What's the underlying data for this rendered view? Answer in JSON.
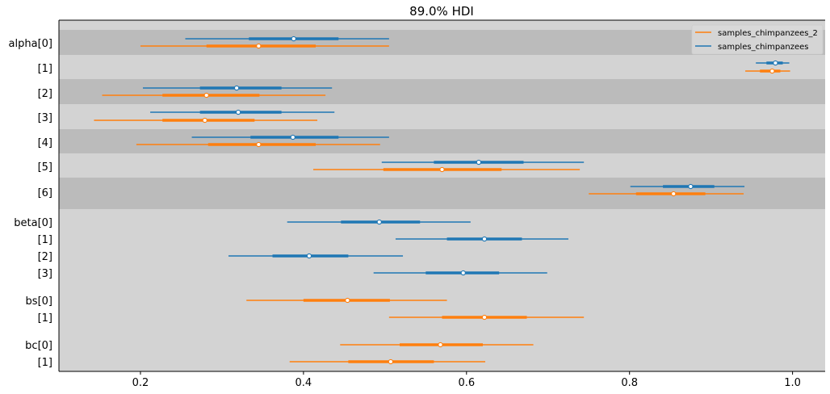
{
  "chart_data": {
    "type": "forest",
    "title": "89.0% HDI",
    "xlim": [
      0.1,
      1.04
    ],
    "xticks": [
      0.2,
      0.4,
      0.6,
      0.8,
      1.0
    ],
    "xtick_labels": [
      "0.2",
      "0.4",
      "0.6",
      "0.8",
      "1.0"
    ],
    "legend": {
      "placement": "top-right",
      "entries": [
        {
          "name": "samples_chimpanzees_2",
          "color": "#ff7f0e"
        },
        {
          "name": "samples_chimpanzees",
          "color": "#1f77b4"
        }
      ]
    },
    "colors": {
      "band_dark": "#bbbbbb",
      "band_light": "#d3d3d3",
      "series_blue": "#1f77b4",
      "series_orange": "#ff7f0e"
    },
    "rows": [
      {
        "label": "alpha[0]",
        "band": "dark",
        "blue": {
          "lo": 0.255,
          "q1": 0.333,
          "mid": 0.388,
          "q3": 0.443,
          "hi": 0.505
        },
        "orange": {
          "lo": 0.2,
          "q1": 0.281,
          "mid": 0.345,
          "q3": 0.415,
          "hi": 0.505
        }
      },
      {
        "label": "[1]",
        "band": "light",
        "blue": {
          "lo": 0.955,
          "q1": 0.968,
          "mid": 0.979,
          "q3": 0.988,
          "hi": 0.996
        },
        "orange": {
          "lo": 0.942,
          "q1": 0.96,
          "mid": 0.975,
          "q3": 0.985,
          "hi": 0.997
        }
      },
      {
        "label": "[2]",
        "band": "dark",
        "blue": {
          "lo": 0.203,
          "q1": 0.273,
          "mid": 0.318,
          "q3": 0.373,
          "hi": 0.435
        },
        "orange": {
          "lo": 0.153,
          "q1": 0.227,
          "mid": 0.281,
          "q3": 0.346,
          "hi": 0.427
        }
      },
      {
        "label": "[3]",
        "band": "light",
        "blue": {
          "lo": 0.212,
          "q1": 0.273,
          "mid": 0.32,
          "q3": 0.373,
          "hi": 0.438
        },
        "orange": {
          "lo": 0.143,
          "q1": 0.227,
          "mid": 0.279,
          "q3": 0.34,
          "hi": 0.417
        }
      },
      {
        "label": "[4]",
        "band": "dark",
        "blue": {
          "lo": 0.263,
          "q1": 0.335,
          "mid": 0.387,
          "q3": 0.443,
          "hi": 0.505
        },
        "orange": {
          "lo": 0.195,
          "q1": 0.283,
          "mid": 0.345,
          "q3": 0.415,
          "hi": 0.494
        }
      },
      {
        "label": "[5]",
        "band": "light",
        "blue": {
          "lo": 0.496,
          "q1": 0.56,
          "mid": 0.615,
          "q3": 0.67,
          "hi": 0.744
        },
        "orange": {
          "lo": 0.412,
          "q1": 0.498,
          "mid": 0.57,
          "q3": 0.643,
          "hi": 0.739
        }
      },
      {
        "label": "[6]",
        "band": "dark",
        "blue": {
          "lo": 0.801,
          "q1": 0.841,
          "mid": 0.875,
          "q3": 0.904,
          "hi": 0.941
        },
        "orange": {
          "lo": 0.75,
          "q1": 0.808,
          "mid": 0.854,
          "q3": 0.893,
          "hi": 0.94
        }
      },
      {
        "label": "beta[0]",
        "band": "light",
        "blue": {
          "lo": 0.38,
          "q1": 0.446,
          "mid": 0.493,
          "q3": 0.543,
          "hi": 0.605
        }
      },
      {
        "label": "[1]",
        "band": "light",
        "blue": {
          "lo": 0.513,
          "q1": 0.576,
          "mid": 0.622,
          "q3": 0.668,
          "hi": 0.725
        }
      },
      {
        "label": "[2]",
        "band": "light",
        "blue": {
          "lo": 0.308,
          "q1": 0.362,
          "mid": 0.407,
          "q3": 0.455,
          "hi": 0.522
        }
      },
      {
        "label": "[3]",
        "band": "light",
        "blue": {
          "lo": 0.486,
          "q1": 0.55,
          "mid": 0.596,
          "q3": 0.64,
          "hi": 0.699
        }
      },
      {
        "label": "bs[0]",
        "band": "light",
        "orange": {
          "lo": 0.33,
          "q1": 0.4,
          "mid": 0.454,
          "q3": 0.506,
          "hi": 0.576
        }
      },
      {
        "label": "[1]",
        "band": "light",
        "orange": {
          "lo": 0.505,
          "q1": 0.57,
          "mid": 0.622,
          "q3": 0.674,
          "hi": 0.744
        }
      },
      {
        "label": "bc[0]",
        "band": "light",
        "orange": {
          "lo": 0.445,
          "q1": 0.518,
          "mid": 0.568,
          "q3": 0.62,
          "hi": 0.682
        }
      },
      {
        "label": "[1]",
        "band": "light",
        "orange": {
          "lo": 0.383,
          "q1": 0.455,
          "mid": 0.507,
          "q3": 0.56,
          "hi": 0.623
        }
      }
    ]
  }
}
